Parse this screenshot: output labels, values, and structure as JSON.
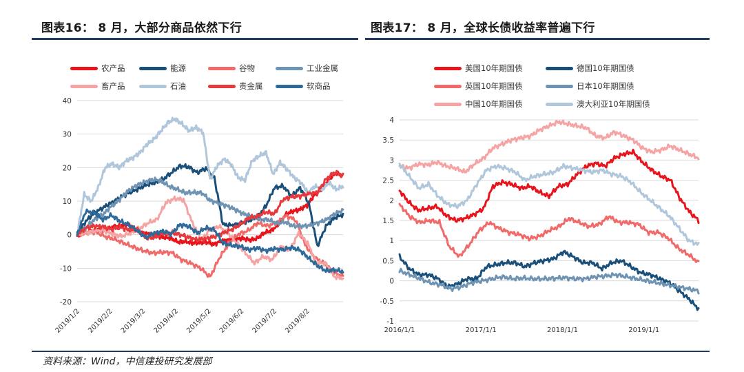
{
  "titles": {
    "left": "图表16：  8 月，大部分商品依然下行",
    "right": "图表17：  8 月，全球长债收益率普遍下行"
  },
  "source": "资料来源：Wind，中信建投研究发展部",
  "chart_data": [
    {
      "type": "line",
      "ylim": [
        -20,
        40
      ],
      "y_ticks": [
        -20,
        -10,
        0,
        10,
        20,
        30,
        40
      ],
      "x_ticks": [
        "2019/1/2",
        "2019/2/2",
        "2019/3/2",
        "2019/4/2",
        "2019/5/2",
        "2019/6/2",
        "2019/7/2",
        "2019/8/2"
      ],
      "x_tick_positions": [
        0,
        1,
        2,
        3,
        4,
        5,
        6,
        7
      ],
      "x_range": [
        0,
        8.1
      ],
      "grid": "horizontal",
      "legend": "top",
      "series": [
        {
          "name": "农产品",
          "color": "#e8141c",
          "values": [
            0,
            0.5,
            1.2,
            1.8,
            1,
            2.4,
            2.6,
            3,
            1.8,
            0.5,
            0.2,
            -0.3,
            -0.8,
            -1,
            -2.2,
            -2,
            -2.5,
            -2.4,
            -2.2,
            -2.9,
            -1.9,
            -1.6,
            -1.3,
            -1.1,
            -1.6,
            -1.2,
            0.5,
            1.2,
            3,
            6,
            7,
            7.5,
            8.8,
            11.8,
            13.5,
            16.5,
            18.5,
            17.5
          ]
        },
        {
          "name": "能源",
          "color": "#1a4f7a",
          "values": [
            0,
            4,
            6.5,
            8,
            9.5,
            11,
            12.5,
            13.5,
            14.8,
            15.5,
            16.5,
            18.5,
            20.5,
            20.2,
            18.5,
            19.8,
            17,
            3,
            2.8,
            3.2,
            4.2,
            5.2,
            8.5,
            14,
            14.5,
            11.5,
            14,
            9.5,
            -3.5,
            2.5,
            5,
            6
          ]
        },
        {
          "name": "谷物",
          "color": "#f06a6a",
          "values": [
            0,
            0.6,
            0.8,
            -0.6,
            -1.4,
            -2.6,
            -3.8,
            -4.8,
            -5.5,
            -5.2,
            -5.4,
            -7.5,
            -8.6,
            -10,
            -12.6,
            -6.8,
            -2.6,
            0.2,
            1.2,
            3.5,
            2.6,
            3.5,
            5.6,
            4.4,
            -3,
            -6.8,
            -8.6,
            -11.3,
            -12.4
          ]
        },
        {
          "name": "工业金属",
          "color": "#6f93b3",
          "values": [
            0,
            2,
            4.4,
            5.8,
            8.2,
            10.2,
            12.8,
            14.5,
            15.6,
            16.4,
            16.2,
            14.5,
            13.6,
            12.5,
            12.6,
            12.5,
            10.2,
            9.4,
            8.6,
            7.5,
            6.2,
            5.5,
            4.5,
            4.5,
            3.4,
            3.8,
            2.6,
            2.5,
            2.8,
            3.5,
            4.5,
            6.2,
            7.3
          ]
        },
        {
          "name": "畜产品",
          "color": "#f5a3a3",
          "values": [
            0,
            0.5,
            1.2,
            1.2,
            0.2,
            -0.5,
            0.5,
            1.8,
            3.5,
            4.5,
            9.5,
            10.8,
            10.4,
            3.5,
            -1.5,
            1.5,
            2.5,
            0.5,
            -2.5,
            -5.5,
            -8.5,
            -6.5,
            -7.5,
            -3.5,
            -4.5,
            0.5,
            -2.5,
            -8.5,
            -8.5,
            -12.5,
            -13
          ]
        },
        {
          "name": "石油",
          "color": "#b0c7db",
          "values": [
            0,
            12,
            10,
            14,
            20,
            21.2,
            20,
            22,
            23,
            24.5,
            27,
            28.5,
            31,
            33.5,
            34.5,
            33,
            31,
            32,
            30.5,
            16.5,
            20.5,
            22.5,
            21,
            17,
            16.3,
            22,
            23.5,
            24.5,
            18,
            21.5,
            19.5,
            17,
            15.5,
            12.5,
            14.5,
            13.5,
            15.5,
            13.5,
            14.5
          ]
        },
        {
          "name": "贵金属",
          "color": "#e5393d",
          "values": [
            0,
            2,
            2.6,
            2.4,
            1.6,
            2.2,
            1.4,
            1.6,
            -1,
            -0.8,
            0.4,
            0.6,
            0,
            -0.8,
            -1.5,
            -1.2,
            -0.6,
            0.5,
            1.5,
            3,
            5,
            5.5,
            6.8,
            6.2,
            10.5,
            11.3,
            11.5,
            12.2,
            12.6,
            16.5,
            18.6,
            17.6
          ]
        },
        {
          "name": "软商品",
          "color": "#2e6a9a",
          "values": [
            0,
            7,
            6.5,
            4.5,
            5.8,
            4,
            3,
            1.2,
            -0.8,
            0.5,
            1,
            0.2,
            3,
            2.5,
            0.5,
            2,
            1.5,
            -2.5,
            -3.2,
            -3.5,
            -4.5,
            -4,
            -4.8,
            -4.2,
            -4.5,
            -3.8,
            -4.7,
            -7,
            -9.2,
            -10.8,
            -10.5,
            -11
          ]
        }
      ]
    },
    {
      "type": "line",
      "ylim": [
        -1,
        4
      ],
      "y_ticks": [
        -1,
        -0.5,
        0,
        0.5,
        1,
        1.5,
        2,
        2.5,
        3,
        3.5,
        4
      ],
      "x_ticks": [
        "2016/1/1",
        "2017/1/1",
        "2018/1/1",
        "2019/1/1"
      ],
      "x_tick_positions": [
        0,
        1,
        2,
        3
      ],
      "x_range": [
        0,
        3.67
      ],
      "grid": "horizontal",
      "legend": "top",
      "series": [
        {
          "name": "美国10年期国债",
          "color": "#e8141c",
          "values": [
            2.24,
            1.95,
            1.75,
            1.8,
            1.85,
            1.62,
            1.5,
            1.55,
            1.65,
            1.8,
            2.35,
            2.45,
            2.4,
            2.3,
            2.35,
            2.2,
            2.1,
            2.35,
            2.4,
            2.65,
            2.85,
            2.92,
            2.85,
            3.05,
            3.15,
            3.2,
            2.95,
            2.75,
            2.6,
            2.5,
            2.05,
            1.72,
            1.5
          ]
        },
        {
          "name": "德国10年期国债",
          "color": "#1a4f7a",
          "values": [
            0.6,
            0.3,
            0.15,
            0.15,
            0.05,
            -0.15,
            -0.08,
            0.05,
            0.05,
            0.35,
            0.4,
            0.45,
            0.45,
            0.35,
            0.45,
            0.5,
            0.55,
            0.72,
            0.6,
            0.45,
            0.45,
            0.3,
            0.45,
            0.5,
            0.35,
            0.2,
            0.15,
            0.05,
            -0.05,
            -0.25,
            -0.45,
            -0.7
          ]
        },
        {
          "name": "英国10年期国债",
          "color": "#f06a6a",
          "values": [
            1.9,
            1.6,
            1.45,
            1.5,
            1.45,
            0.85,
            0.6,
            0.9,
            1.25,
            1.45,
            1.3,
            1.2,
            1.15,
            1.05,
            1.1,
            1.25,
            1.35,
            1.55,
            1.45,
            1.35,
            1.4,
            1.6,
            1.45,
            1.45,
            1.4,
            1.2,
            1.2,
            1.05,
            0.8,
            0.65,
            0.45
          ]
        },
        {
          "name": "日本10年期国债",
          "color": "#6f93b3",
          "values": [
            0.25,
            0.15,
            0.05,
            -0.05,
            -0.1,
            -0.2,
            -0.15,
            -0.05,
            0.0,
            0.05,
            0.1,
            0.05,
            0.07,
            0.05,
            0.05,
            0.06,
            0.08,
            0.05,
            0.05,
            0.1,
            0.12,
            0.15,
            0.1,
            0.05,
            0.0,
            -0.05,
            -0.1,
            -0.15,
            -0.2,
            -0.25
          ]
        },
        {
          "name": "中国10年期国债",
          "color": "#f5a3a3",
          "values": [
            2.85,
            2.8,
            2.9,
            2.88,
            2.95,
            2.85,
            2.8,
            2.7,
            2.9,
            3.05,
            3.3,
            3.4,
            3.5,
            3.55,
            3.6,
            3.75,
            3.85,
            3.95,
            3.9,
            3.85,
            3.8,
            3.6,
            3.55,
            3.7,
            3.6,
            3.5,
            3.3,
            3.2,
            3.25,
            3.35,
            3.25,
            3.15,
            3.05
          ]
        },
        {
          "name": "澳大利亚10年期国债",
          "color": "#b0c7db",
          "values": [
            2.9,
            2.6,
            2.3,
            2.4,
            2.1,
            1.9,
            1.85,
            2.0,
            2.4,
            2.75,
            2.85,
            2.8,
            2.7,
            2.5,
            2.6,
            2.65,
            2.7,
            2.85,
            2.8,
            2.75,
            2.7,
            2.75,
            2.65,
            2.6,
            2.45,
            2.2,
            2.0,
            1.8,
            1.6,
            1.3,
            1.0,
            0.9
          ]
        }
      ]
    }
  ]
}
